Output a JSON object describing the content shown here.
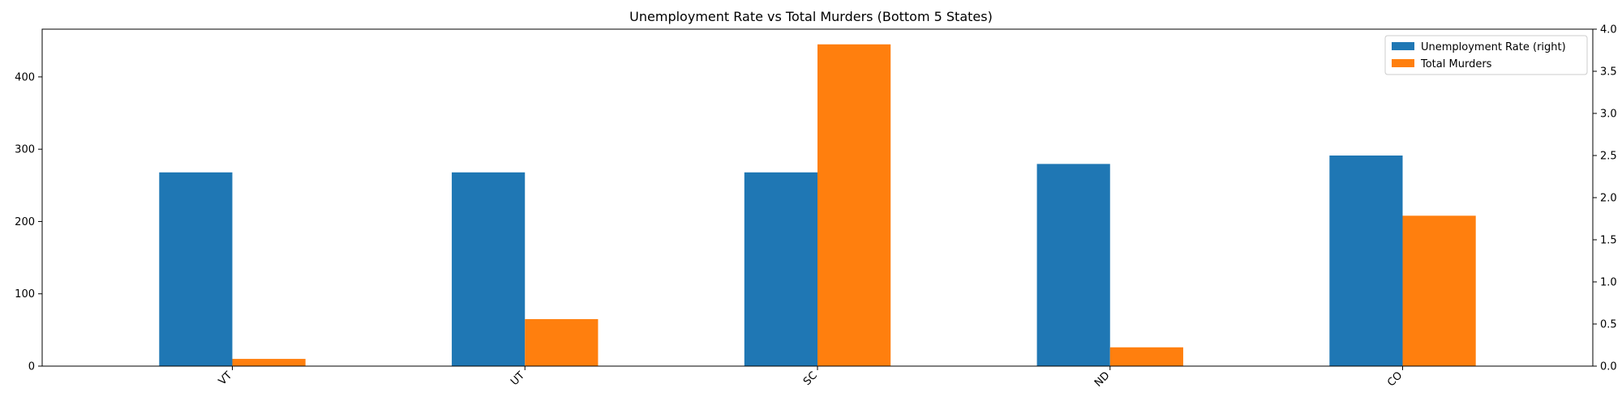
{
  "chart_data": {
    "type": "bar",
    "title": "Unemployment Rate vs Total Murders (Bottom 5 States)",
    "categories": [
      "VT",
      "UT",
      "SC",
      "ND",
      "CO"
    ],
    "series": [
      {
        "name": "Unemployment Rate (right)",
        "axis": "right",
        "color": "#1f77b4",
        "values": [
          2.3,
          2.3,
          2.3,
          2.4,
          2.5
        ]
      },
      {
        "name": "Total Murders",
        "axis": "left",
        "color": "#ff7f0e",
        "values": [
          10,
          65,
          445,
          26,
          208
        ]
      }
    ],
    "xlabel": "",
    "ylabel": "",
    "ylim_left": [
      0,
      466
    ],
    "yticks_left": [
      "0",
      "100",
      "200",
      "300",
      "400"
    ],
    "ylim_right": [
      0,
      4.0
    ],
    "yticks_right": [
      "0.0",
      "0.5",
      "1.0",
      "1.5",
      "2.0",
      "2.5",
      "3.0",
      "3.5",
      "4.0"
    ],
    "xtick_rotation": 45,
    "grid": false,
    "legend_position": "top-right"
  }
}
